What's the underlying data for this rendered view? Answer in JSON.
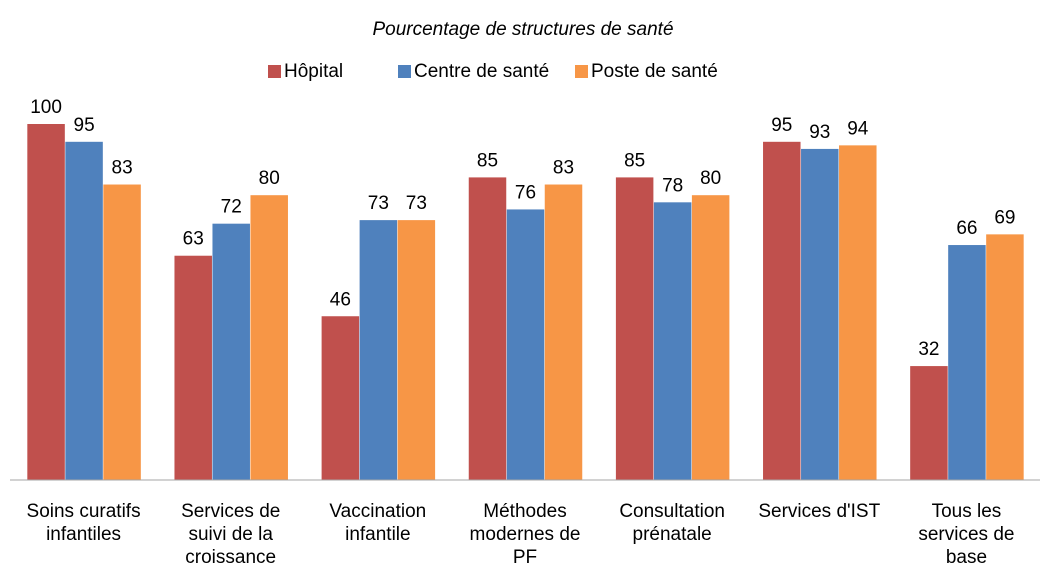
{
  "chart_data": {
    "type": "bar",
    "title": "Pourcentage de structures de santé",
    "categories": [
      "Soins curatifs infantiles",
      "Services de suivi de la croissance",
      "Vaccination infantile",
      "Méthodes modernes de PF",
      "Consultation prénatale",
      "Services d'IST",
      "Tous les services de base"
    ],
    "series": [
      {
        "name": "Hôpital",
        "color": "#c0504d",
        "values": [
          100,
          63,
          46,
          85,
          85,
          95,
          32
        ]
      },
      {
        "name": "Centre de santé",
        "color": "#4f81bd",
        "values": [
          95,
          72,
          73,
          76,
          78,
          93,
          66
        ]
      },
      {
        "name": "Poste de santé",
        "color": "#f79646",
        "values": [
          83,
          80,
          73,
          83,
          80,
          94,
          69
        ]
      }
    ],
    "ylim": [
      0,
      100
    ],
    "legend": "top"
  }
}
